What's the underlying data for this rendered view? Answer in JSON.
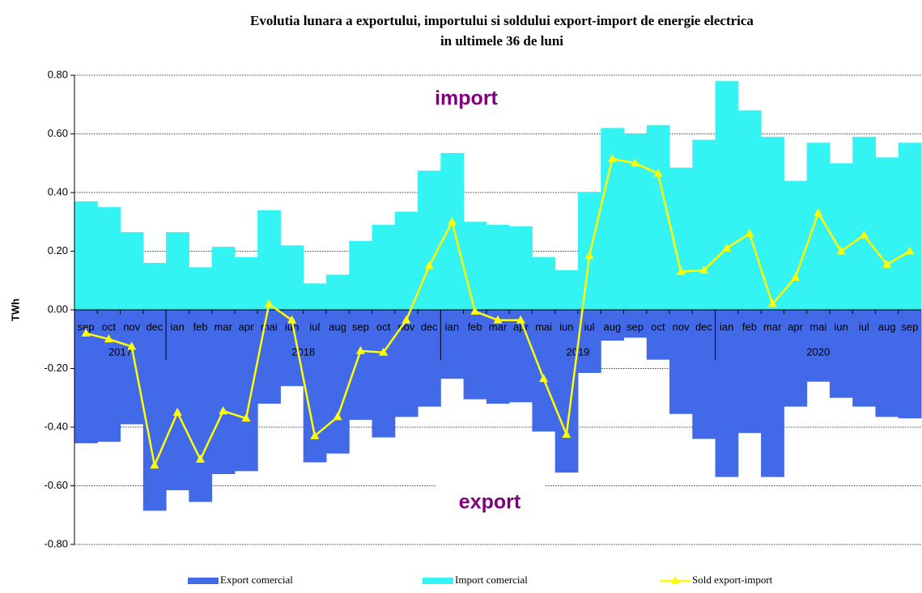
{
  "chart_data": {
    "type": "bar-line",
    "title": [
      "Evolutia lunara a exportului, importului si soldului export-import de energie electrica",
      "in ultimele 36 de luni"
    ],
    "ylabel": "TWh",
    "annotations": [
      "import",
      "export"
    ],
    "annotation_color": "#800080",
    "categories": [
      "sep",
      "oct",
      "nov",
      "dec",
      "ian",
      "feb",
      "mar",
      "apr",
      "mai",
      "iun",
      "iul",
      "aug",
      "sep",
      "oct",
      "nov",
      "dec",
      "ian",
      "feb",
      "mar",
      "apr",
      "mai",
      "iun",
      "iul",
      "aug",
      "sep",
      "oct",
      "nov",
      "dec",
      "ian",
      "feb",
      "mar",
      "apr",
      "mai",
      "iun",
      "iul",
      "aug",
      "sep"
    ],
    "years": [
      "2017",
      "2018",
      "2019",
      "2020"
    ],
    "ylim": [
      -0.8,
      0.8
    ],
    "yticks": [
      {
        "value": -0.8,
        "label": "-0.80"
      },
      {
        "value": -0.6,
        "label": "-0.60"
      },
      {
        "value": -0.4,
        "label": "-0.40"
      },
      {
        "value": -0.2,
        "label": "-0.20"
      },
      {
        "value": 0,
        "label": "0.00"
      },
      {
        "value": 0.2,
        "label": "0.20"
      },
      {
        "value": 0.4,
        "label": "0.40"
      },
      {
        "value": 0.6,
        "label": "0.60"
      },
      {
        "value": 0.8,
        "label": "0.80"
      }
    ],
    "grid": true,
    "series": [
      {
        "name": "Export comercial",
        "type": "bar",
        "color": "#4169e8",
        "values": [
          -0.455,
          -0.45,
          -0.39,
          -0.685,
          -0.615,
          -0.655,
          -0.56,
          -0.55,
          -0.32,
          -0.26,
          -0.52,
          -0.49,
          -0.375,
          -0.435,
          -0.365,
          -0.33,
          -0.235,
          -0.305,
          -0.32,
          -0.315,
          -0.415,
          -0.555,
          -0.215,
          -0.105,
          -0.095,
          -0.17,
          -0.355,
          -0.44,
          -0.57,
          -0.42,
          -0.57,
          -0.33,
          -0.245,
          -0.3,
          -0.33,
          -0.365,
          -0.37
        ]
      },
      {
        "name": "Import comercial",
        "type": "bar",
        "color": "#33f3f3",
        "values": [
          0.37,
          0.35,
          0.265,
          0.16,
          0.265,
          0.145,
          0.215,
          0.18,
          0.34,
          0.22,
          0.09,
          0.12,
          0.235,
          0.29,
          0.335,
          0.475,
          0.535,
          0.3,
          0.29,
          0.285,
          0.18,
          0.135,
          0.4,
          0.62,
          0.6,
          0.63,
          0.485,
          0.58,
          0.78,
          0.68,
          0.59,
          0.44,
          0.57,
          0.5,
          0.59,
          0.52,
          0.57
        ]
      },
      {
        "name": "Sold export-import",
        "type": "line",
        "color": "#ffff00",
        "values": [
          -0.08,
          -0.1,
          -0.125,
          -0.53,
          -0.35,
          -0.51,
          -0.345,
          -0.37,
          0.02,
          -0.035,
          -0.43,
          -0.365,
          -0.14,
          -0.145,
          -0.035,
          0.15,
          0.3,
          -0.005,
          -0.035,
          -0.035,
          -0.235,
          -0.425,
          0.185,
          0.515,
          0.5,
          0.465,
          0.13,
          0.135,
          0.21,
          0.26,
          0.02,
          0.11,
          0.33,
          0.2,
          0.255,
          0.155,
          0.2
        ]
      }
    ]
  }
}
